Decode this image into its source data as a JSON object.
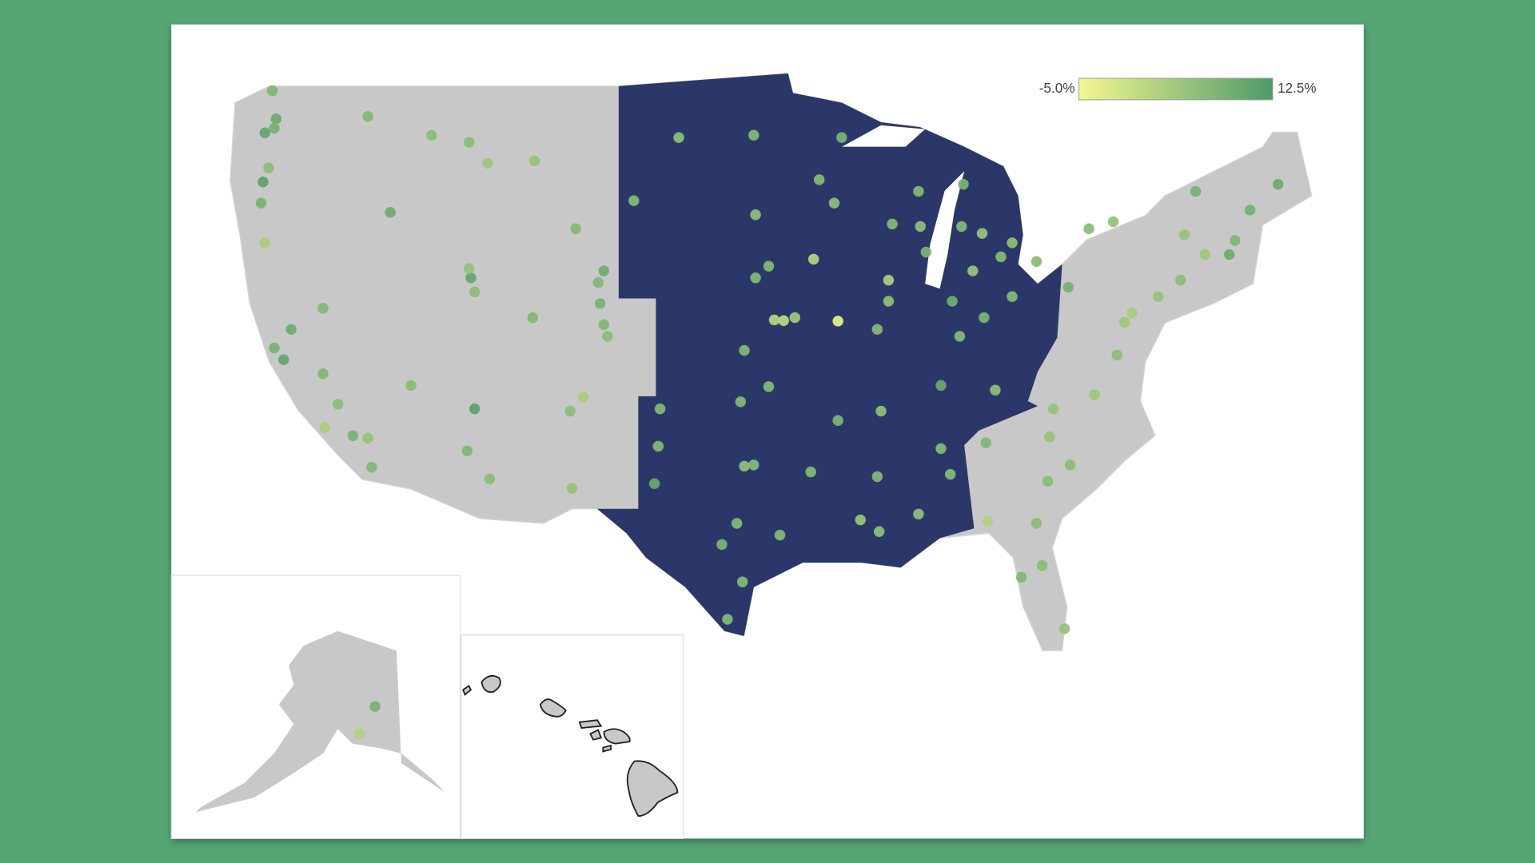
{
  "map": {
    "legend": {
      "colors": [
        "#f4f78f",
        "#4f9a6b"
      ],
      "ticks": [
        {
          "value": -5,
          "label": "-5.0%"
        },
        {
          "value": 12.5,
          "label": "12.5%"
        }
      ]
    },
    "points": [
      {
        "lon": -122.3,
        "lat": 47.6,
        "value": 9
      },
      {
        "lon": -122.4,
        "lat": 47.2,
        "value": 8
      },
      {
        "lon": -122.9,
        "lat": 47.0,
        "value": 10
      },
      {
        "lon": -122.5,
        "lat": 48.8,
        "value": 7
      },
      {
        "lon": -117.4,
        "lat": 47.7,
        "value": 7
      },
      {
        "lon": -116.2,
        "lat": 43.6,
        "value": 9
      },
      {
        "lon": -122.7,
        "lat": 45.5,
        "value": 6
      },
      {
        "lon": -123.0,
        "lat": 44.9,
        "value": 11
      },
      {
        "lon": -123.1,
        "lat": 44.0,
        "value": 8
      },
      {
        "lon": -122.9,
        "lat": 42.3,
        "value": 3
      },
      {
        "lon": -114.0,
        "lat": 46.9,
        "value": 6
      },
      {
        "lon": -108.5,
        "lat": 45.8,
        "value": 5
      },
      {
        "lon": -112.0,
        "lat": 46.6,
        "value": 6
      },
      {
        "lon": -111.0,
        "lat": 45.7,
        "value": 4
      },
      {
        "lon": -119.8,
        "lat": 39.5,
        "value": 7
      },
      {
        "lon": -121.5,
        "lat": 38.6,
        "value": 9
      },
      {
        "lon": -122.4,
        "lat": 37.8,
        "value": 8
      },
      {
        "lon": -121.9,
        "lat": 37.3,
        "value": 10
      },
      {
        "lon": -119.8,
        "lat": 36.7,
        "value": 7
      },
      {
        "lon": -119.0,
        "lat": 35.4,
        "value": 6
      },
      {
        "lon": -118.2,
        "lat": 34.05,
        "value": 8
      },
      {
        "lon": -117.2,
        "lat": 32.7,
        "value": 7
      },
      {
        "lon": -117.4,
        "lat": 33.95,
        "value": 5
      },
      {
        "lon": -119.7,
        "lat": 34.4,
        "value": 3
      },
      {
        "lon": -115.1,
        "lat": 36.2,
        "value": 6
      },
      {
        "lon": -112.1,
        "lat": 33.4,
        "value": 7
      },
      {
        "lon": -110.9,
        "lat": 32.2,
        "value": 6
      },
      {
        "lon": -111.9,
        "lat": 40.8,
        "value": 10
      },
      {
        "lon": -111.7,
        "lat": 40.2,
        "value": 6
      },
      {
        "lon": -112.0,
        "lat": 41.2,
        "value": 5
      },
      {
        "lon": -105.0,
        "lat": 39.7,
        "value": 8
      },
      {
        "lon": -104.8,
        "lat": 38.8,
        "value": 7
      },
      {
        "lon": -105.1,
        "lat": 40.6,
        "value": 7
      },
      {
        "lon": -104.6,
        "lat": 38.3,
        "value": 6
      },
      {
        "lon": -104.8,
        "lat": 41.1,
        "value": 9
      },
      {
        "lon": -106.6,
        "lat": 35.1,
        "value": 6
      },
      {
        "lon": -105.9,
        "lat": 35.7,
        "value": 3
      },
      {
        "lon": -106.5,
        "lat": 31.8,
        "value": 5
      },
      {
        "lon": -106.3,
        "lat": 42.9,
        "value": 7
      },
      {
        "lon": -111.7,
        "lat": 35.2,
        "value": 11
      },
      {
        "lon": -108.6,
        "lat": 39.1,
        "value": 7
      },
      {
        "lon": -96.8,
        "lat": 46.9,
        "value": 7
      },
      {
        "lon": -100.8,
        "lat": 46.8,
        "value": 6
      },
      {
        "lon": -96.7,
        "lat": 43.5,
        "value": 6
      },
      {
        "lon": -103.2,
        "lat": 44.1,
        "value": 7
      },
      {
        "lon": -93.3,
        "lat": 45.0,
        "value": 7
      },
      {
        "lon": -92.1,
        "lat": 46.8,
        "value": 8
      },
      {
        "lon": -92.5,
        "lat": 44.0,
        "value": 6
      },
      {
        "lon": -93.6,
        "lat": 41.6,
        "value": 2
      },
      {
        "lon": -96.0,
        "lat": 41.3,
        "value": 7
      },
      {
        "lon": -96.7,
        "lat": 40.8,
        "value": 7
      },
      {
        "lon": -94.6,
        "lat": 39.1,
        "value": 4
      },
      {
        "lon": -97.3,
        "lat": 37.7,
        "value": 7
      },
      {
        "lon": -95.7,
        "lat": 39.0,
        "value": 2
      },
      {
        "lon": -95.2,
        "lat": 38.97,
        "value": 1
      },
      {
        "lon": -89.4,
        "lat": 43.1,
        "value": 7
      },
      {
        "lon": -87.9,
        "lat": 43.0,
        "value": 6
      },
      {
        "lon": -88.0,
        "lat": 44.5,
        "value": 7
      },
      {
        "lon": -87.6,
        "lat": 41.9,
        "value": 8
      },
      {
        "lon": -89.6,
        "lat": 40.7,
        "value": 3
      },
      {
        "lon": -89.6,
        "lat": 39.8,
        "value": 6
      },
      {
        "lon": -90.2,
        "lat": 38.6,
        "value": 7
      },
      {
        "lon": -92.3,
        "lat": 38.95,
        "value": -3
      },
      {
        "lon": -86.2,
        "lat": 39.8,
        "value": 9
      },
      {
        "lon": -85.1,
        "lat": 41.1,
        "value": 5
      },
      {
        "lon": -83.0,
        "lat": 42.3,
        "value": 6
      },
      {
        "lon": -85.7,
        "lat": 43.0,
        "value": 7
      },
      {
        "lon": -84.6,
        "lat": 42.7,
        "value": 5
      },
      {
        "lon": -85.6,
        "lat": 44.8,
        "value": 8
      },
      {
        "lon": -83.0,
        "lat": 40.0,
        "value": 7
      },
      {
        "lon": -81.7,
        "lat": 41.5,
        "value": 6
      },
      {
        "lon": -84.5,
        "lat": 39.1,
        "value": 8
      },
      {
        "lon": -83.6,
        "lat": 41.7,
        "value": 7
      },
      {
        "lon": -85.8,
        "lat": 38.3,
        "value": 7
      },
      {
        "lon": -86.8,
        "lat": 36.2,
        "value": 10
      },
      {
        "lon": -90.0,
        "lat": 35.1,
        "value": 6
      },
      {
        "lon": -83.9,
        "lat": 36.0,
        "value": 6
      },
      {
        "lon": -97.5,
        "lat": 35.5,
        "value": 7
      },
      {
        "lon": -96.0,
        "lat": 36.15,
        "value": 7
      },
      {
        "lon": -92.3,
        "lat": 34.7,
        "value": 8
      },
      {
        "lon": -96.8,
        "lat": 32.8,
        "value": 7
      },
      {
        "lon": -97.3,
        "lat": 32.75,
        "value": 6
      },
      {
        "lon": -97.7,
        "lat": 30.3,
        "value": 7
      },
      {
        "lon": -98.5,
        "lat": 29.4,
        "value": 8
      },
      {
        "lon": -95.4,
        "lat": 29.8,
        "value": 7
      },
      {
        "lon": -97.4,
        "lat": 27.8,
        "value": 7
      },
      {
        "lon": -98.2,
        "lat": 26.2,
        "value": 7
      },
      {
        "lon": -101.9,
        "lat": 33.6,
        "value": 7
      },
      {
        "lon": -101.8,
        "lat": 35.2,
        "value": 7
      },
      {
        "lon": -102.1,
        "lat": 32.0,
        "value": 10
      },
      {
        "lon": -93.75,
        "lat": 32.5,
        "value": 7
      },
      {
        "lon": -90.2,
        "lat": 32.3,
        "value": 7
      },
      {
        "lon": -90.1,
        "lat": 29.95,
        "value": 6
      },
      {
        "lon": -91.1,
        "lat": 30.45,
        "value": 5
      },
      {
        "lon": -86.8,
        "lat": 33.5,
        "value": 7
      },
      {
        "lon": -88.0,
        "lat": 30.7,
        "value": 6
      },
      {
        "lon": -86.3,
        "lat": 32.4,
        "value": 7
      },
      {
        "lon": -84.4,
        "lat": 33.75,
        "value": 7
      },
      {
        "lon": -81.1,
        "lat": 32.1,
        "value": 6
      },
      {
        "lon": -81.7,
        "lat": 30.3,
        "value": 6
      },
      {
        "lon": -81.4,
        "lat": 28.5,
        "value": 6
      },
      {
        "lon": -82.5,
        "lat": 28.0,
        "value": 7
      },
      {
        "lon": -80.2,
        "lat": 25.8,
        "value": 5
      },
      {
        "lon": -84.3,
        "lat": 30.4,
        "value": 2
      },
      {
        "lon": -80.8,
        "lat": 35.2,
        "value": 5
      },
      {
        "lon": -78.6,
        "lat": 35.8,
        "value": 4
      },
      {
        "lon": -79.9,
        "lat": 32.8,
        "value": 6
      },
      {
        "lon": -81.0,
        "lat": 34.0,
        "value": 5
      },
      {
        "lon": -77.4,
        "lat": 37.5,
        "value": 6
      },
      {
        "lon": -77.0,
        "lat": 38.9,
        "value": 4
      },
      {
        "lon": -76.6,
        "lat": 39.3,
        "value": 3
      },
      {
        "lon": -75.2,
        "lat": 40.0,
        "value": 5
      },
      {
        "lon": -80.0,
        "lat": 40.4,
        "value": 8
      },
      {
        "lon": -74.0,
        "lat": 40.7,
        "value": 6
      },
      {
        "lon": -73.8,
        "lat": 42.65,
        "value": 5
      },
      {
        "lon": -78.9,
        "lat": 42.9,
        "value": 6
      },
      {
        "lon": -77.6,
        "lat": 43.2,
        "value": 5
      },
      {
        "lon": -71.1,
        "lat": 42.4,
        "value": 7
      },
      {
        "lon": -72.7,
        "lat": 41.8,
        "value": 4
      },
      {
        "lon": -71.4,
        "lat": 41.8,
        "value": 9
      },
      {
        "lon": -70.3,
        "lat": 43.7,
        "value": 8
      },
      {
        "lon": -73.2,
        "lat": 44.5,
        "value": 8
      },
      {
        "lon": -68.8,
        "lat": 44.8,
        "value": 9
      },
      {
        "lon": -149.9,
        "lat": 61.2,
        "value": 8
      },
      {
        "lon": -151.5,
        "lat": 59.6,
        "value": 2
      }
    ]
  }
}
